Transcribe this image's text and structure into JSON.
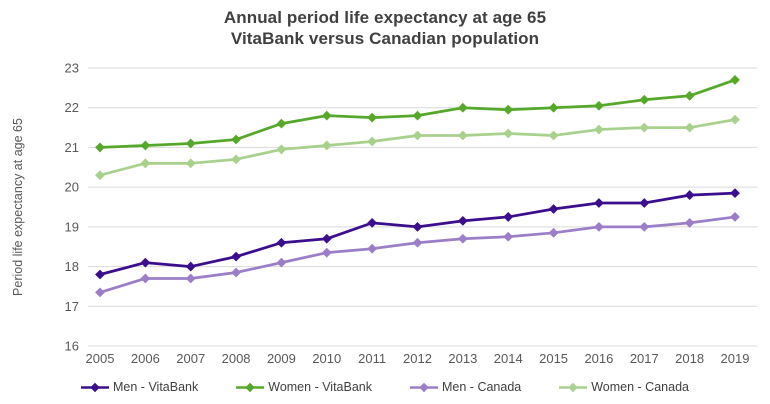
{
  "title": {
    "line1": "Annual period life expectancy at age 65",
    "line2": "VitaBank versus Canadian population"
  },
  "chart_data": {
    "type": "line",
    "title": "Annual period life expectancy at age 65",
    "subtitle": "VitaBank versus Canadian population",
    "xlabel": "",
    "ylabel": "Period life expectancy at age 65",
    "x": [
      2005,
      2006,
      2007,
      2008,
      2009,
      2010,
      2011,
      2012,
      2013,
      2014,
      2015,
      2016,
      2017,
      2018,
      2019
    ],
    "series": [
      {
        "name": "Men - VitaBank",
        "color": "#3B0E8E",
        "marker": "diamond",
        "values": [
          17.8,
          18.1,
          18.0,
          18.25,
          18.6,
          18.7,
          19.1,
          19.0,
          19.15,
          19.25,
          19.45,
          19.6,
          19.6,
          19.8,
          19.85
        ]
      },
      {
        "name": "Women - VitaBank",
        "color": "#56A82B",
        "marker": "diamond",
        "values": [
          21.0,
          21.05,
          21.1,
          21.2,
          21.6,
          21.8,
          21.75,
          21.8,
          22.0,
          21.95,
          22.0,
          22.05,
          22.2,
          22.3,
          22.7
        ]
      },
      {
        "name": "Men - Canada",
        "color": "#9B7EC7",
        "marker": "diamond",
        "values": [
          17.35,
          17.7,
          17.7,
          17.85,
          18.1,
          18.35,
          18.45,
          18.6,
          18.7,
          18.75,
          18.85,
          19.0,
          19.0,
          19.1,
          19.25
        ]
      },
      {
        "name": "Women - Canada",
        "color": "#A9D18E",
        "marker": "diamond",
        "values": [
          20.3,
          20.6,
          20.6,
          20.7,
          20.95,
          21.05,
          21.15,
          21.3,
          21.3,
          21.35,
          21.3,
          21.45,
          21.5,
          21.5,
          21.7
        ]
      }
    ],
    "ylim": [
      16,
      23
    ],
    "ytick_step": 1,
    "yticks": [
      16,
      17,
      18,
      19,
      20,
      21,
      22,
      23
    ],
    "grid": "horizontal",
    "legend_position": "bottom"
  },
  "styles": {
    "title_color": "#404040",
    "tick_color": "#595959",
    "axis_title_color": "#595959",
    "grid_color": "#D9D9D9",
    "legend_text_color": "#404040",
    "background": "#FFFFFF"
  }
}
